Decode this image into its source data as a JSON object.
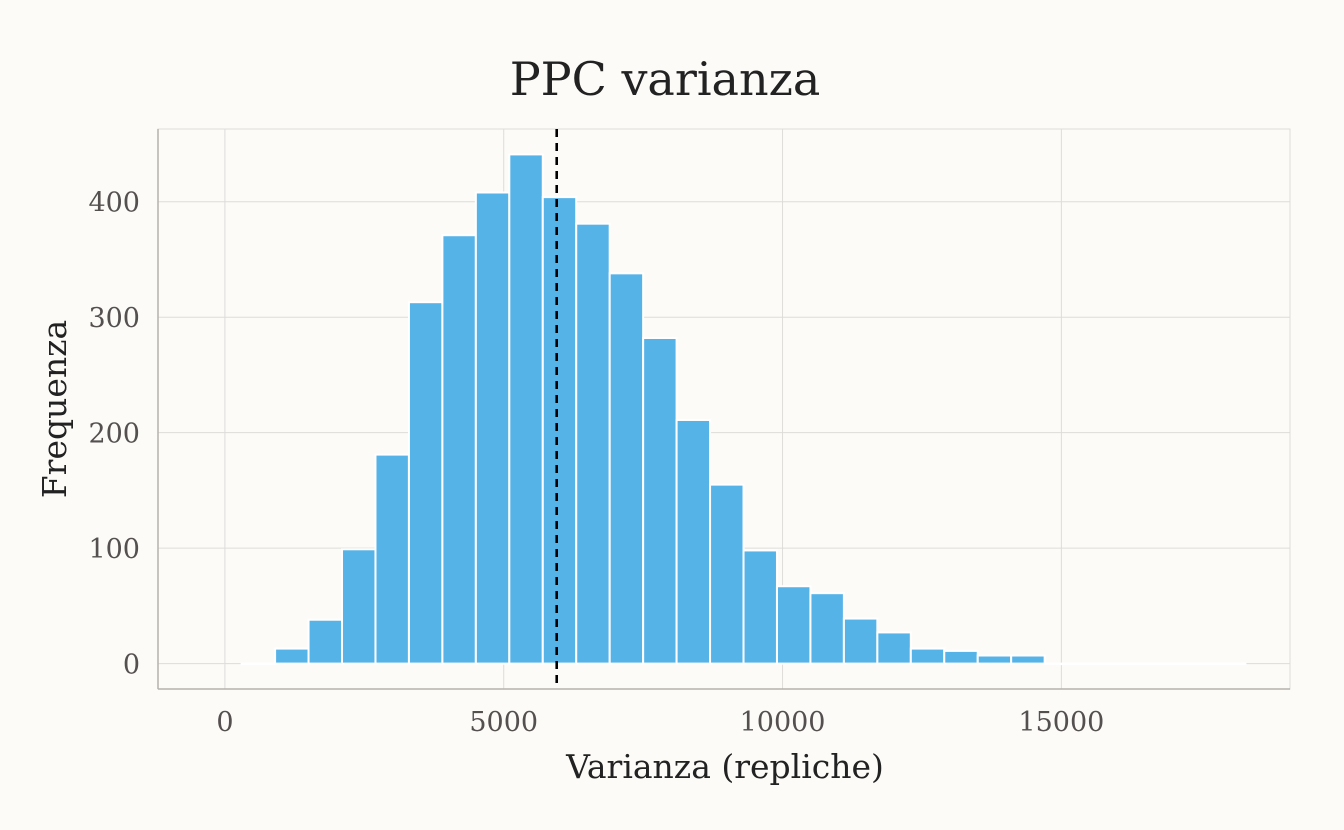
{
  "chart_data": {
    "type": "bar",
    "title": "PPC varianza",
    "xlabel": "Varianza (repliche)",
    "ylabel": "Frequenza",
    "xlim": [
      -1200,
      19100
    ],
    "ylim": [
      -22,
      463
    ],
    "x_ticks": [
      0,
      5000,
      10000,
      15000
    ],
    "x_tick_labels": [
      "0",
      "5000",
      "10000",
      "15000"
    ],
    "y_ticks": [
      0,
      100,
      200,
      300,
      400
    ],
    "y_tick_labels": [
      "0",
      "100",
      "200",
      "300",
      "400"
    ],
    "grid": true,
    "legend": "none",
    "bar_color": "#56b3e8",
    "bar_edge_color": "#ffffff",
    "reference_line": {
      "x": 5950,
      "color": "#000000",
      "style": "dashed"
    },
    "bins": [
      {
        "x0": 300,
        "x1": 900,
        "count": 0
      },
      {
        "x0": 900,
        "x1": 1500,
        "count": 13
      },
      {
        "x0": 1500,
        "x1": 2100,
        "count": 38
      },
      {
        "x0": 2100,
        "x1": 2700,
        "count": 99
      },
      {
        "x0": 2700,
        "x1": 3300,
        "count": 181
      },
      {
        "x0": 3300,
        "x1": 3900,
        "count": 313
      },
      {
        "x0": 3900,
        "x1": 4500,
        "count": 371
      },
      {
        "x0": 4500,
        "x1": 5100,
        "count": 408
      },
      {
        "x0": 5100,
        "x1": 5700,
        "count": 441
      },
      {
        "x0": 5700,
        "x1": 6300,
        "count": 404
      },
      {
        "x0": 6300,
        "x1": 6900,
        "count": 381
      },
      {
        "x0": 6900,
        "x1": 7500,
        "count": 338
      },
      {
        "x0": 7500,
        "x1": 8100,
        "count": 282
      },
      {
        "x0": 8100,
        "x1": 8700,
        "count": 211
      },
      {
        "x0": 8700,
        "x1": 9300,
        "count": 155
      },
      {
        "x0": 9300,
        "x1": 9900,
        "count": 98
      },
      {
        "x0": 9900,
        "x1": 10500,
        "count": 67
      },
      {
        "x0": 10500,
        "x1": 11100,
        "count": 61
      },
      {
        "x0": 11100,
        "x1": 11700,
        "count": 39
      },
      {
        "x0": 11700,
        "x1": 12300,
        "count": 27
      },
      {
        "x0": 12300,
        "x1": 12900,
        "count": 13
      },
      {
        "x0": 12900,
        "x1": 13500,
        "count": 11
      },
      {
        "x0": 13500,
        "x1": 14100,
        "count": 7
      },
      {
        "x0": 14100,
        "x1": 14700,
        "count": 7
      },
      {
        "x0": 14700,
        "x1": 15300,
        "count": 0
      },
      {
        "x0": 15300,
        "x1": 15900,
        "count": 0
      },
      {
        "x0": 15900,
        "x1": 16500,
        "count": 0
      },
      {
        "x0": 16500,
        "x1": 17100,
        "count": 0
      },
      {
        "x0": 17100,
        "x1": 17700,
        "count": 0
      },
      {
        "x0": 17700,
        "x1": 18300,
        "count": 0
      }
    ]
  },
  "colors": {
    "background": "#fcfbf8",
    "grid": "#dedcd8",
    "axis": "#b5b2ad"
  }
}
